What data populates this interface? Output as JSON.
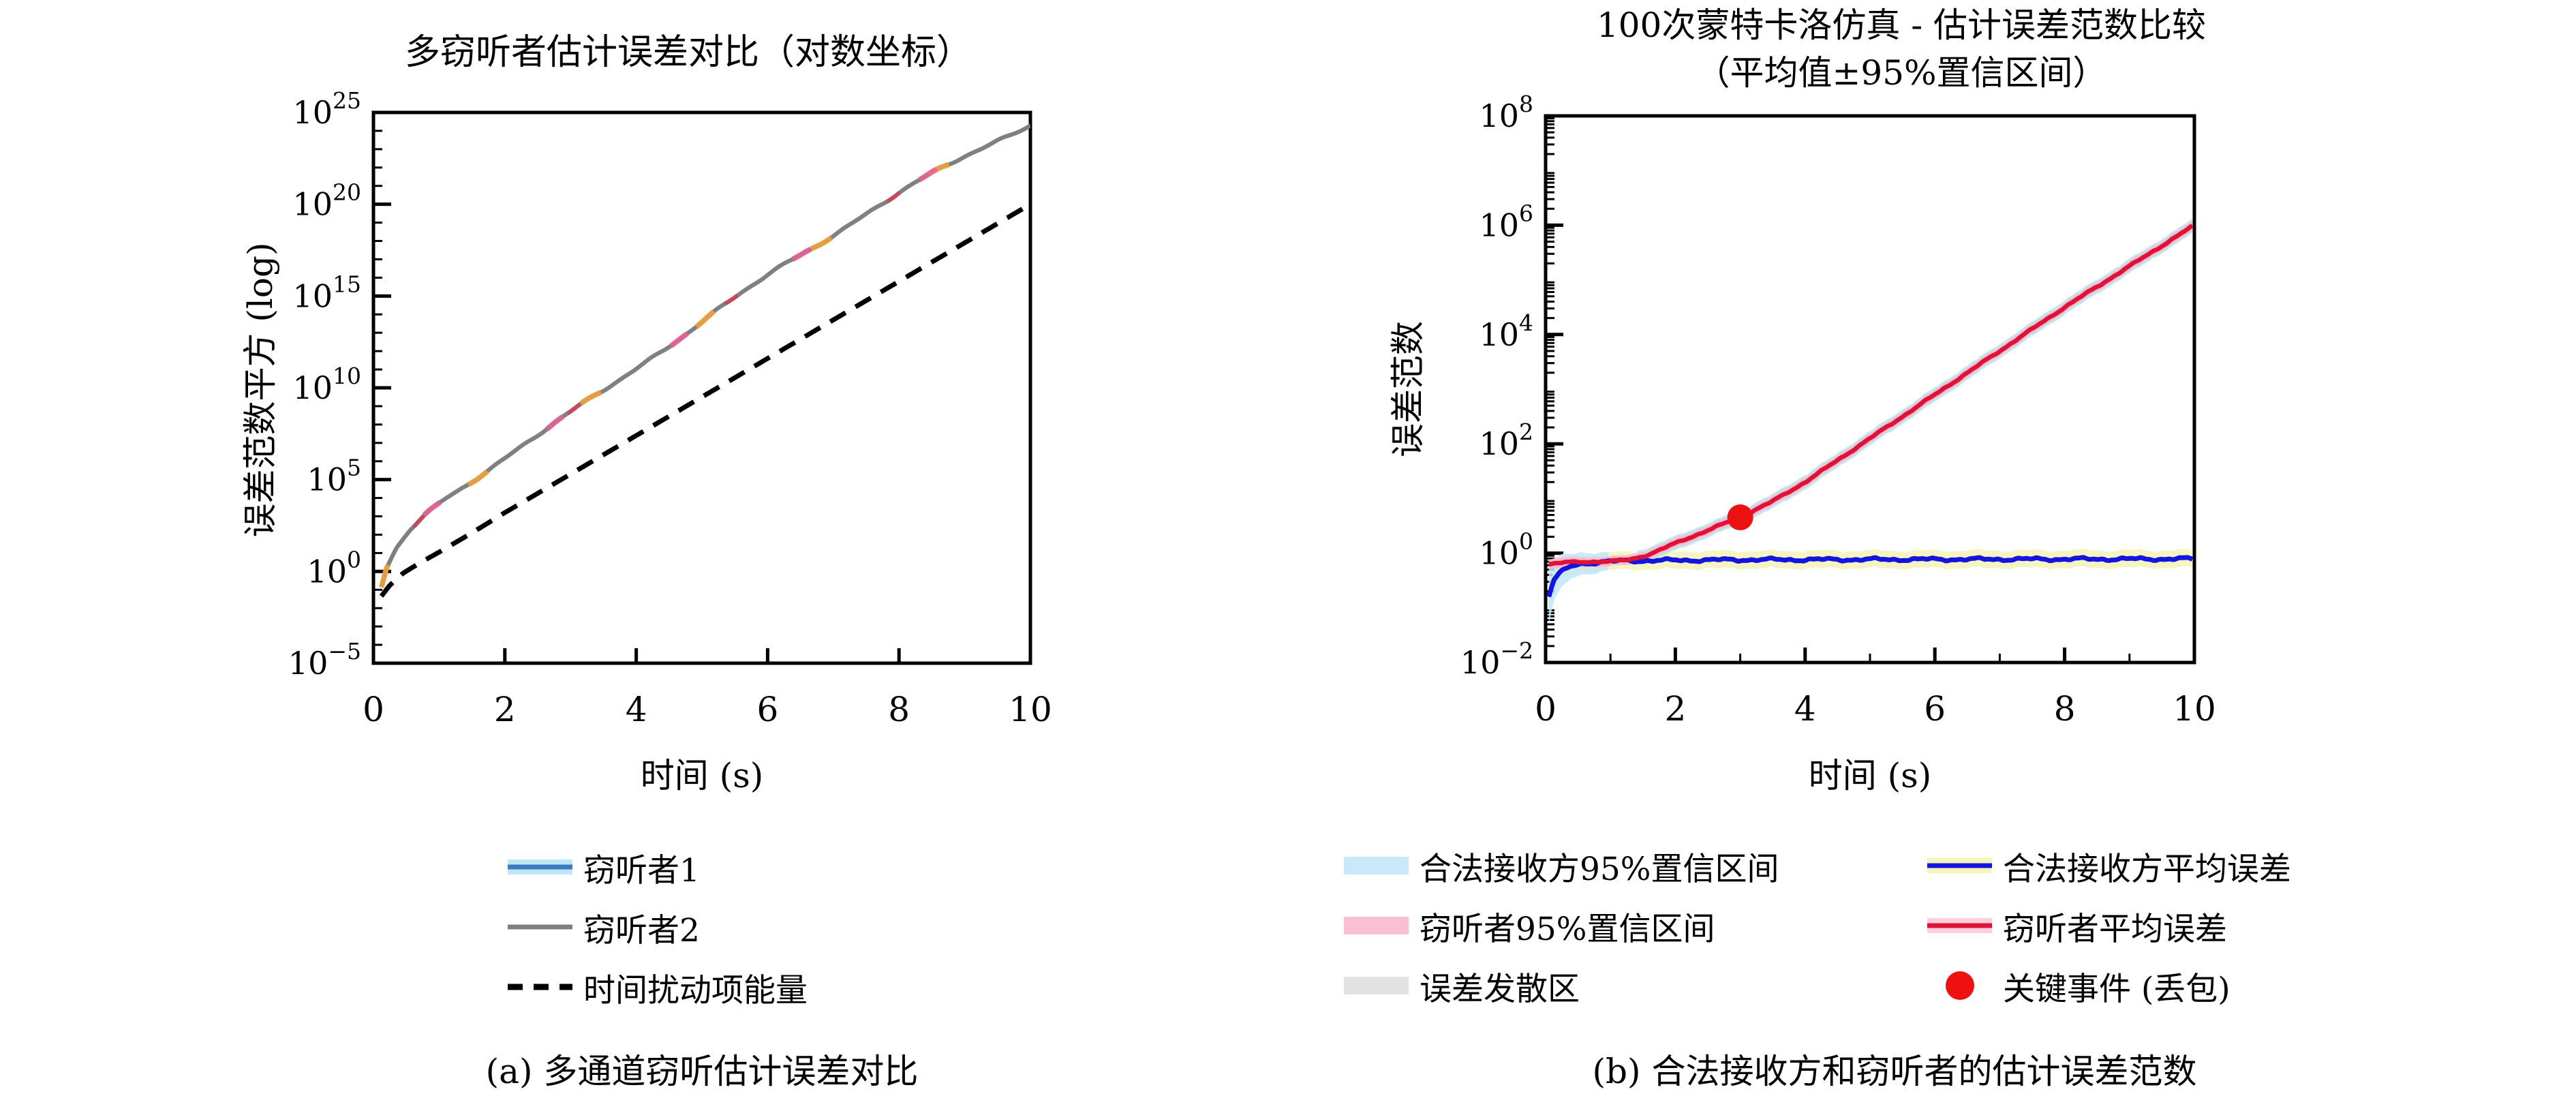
{
  "page": {
    "background": "#ffffff"
  },
  "colors": {
    "axis": "#000000",
    "eavesdropper1_line": "#3a7bbf",
    "eavesdropper1_glow": "#bfe6f7",
    "eavesdropper2_line": "#808080",
    "perturbation_line": "#000000",
    "overlay_orange": "#f1a33c",
    "overlay_pink": "#ec5f9a",
    "overlay_crimson": "#d23c50",
    "bob_line": "#1414dd",
    "bob_line_glow": "#f4f4bc",
    "eve_line": "#dc1438",
    "eve_line_glow": "#ffd0dc",
    "bob_ci_patch": "#c9e9fa",
    "eve_ci_patch": "#f9c0d4",
    "diverge_patch": "#e2e2e2",
    "bob_band_plot": "#f4f4bc",
    "bob_band_start": "#bfe6f7",
    "eve_band_fringe": "#aee4ef",
    "eve_band_plot": "#ffb9cd",
    "key_event_dot": "#ee1111"
  },
  "figure_left": {
    "title": "多窃听者估计误差对比（对数坐标）",
    "ylabel": "误差范数平方 (log)",
    "xlabel": "时间 (s)",
    "caption": "(a) 多通道窃听估计误差对比",
    "legend": [
      {
        "label": "窃听者1"
      },
      {
        "label": "窃听者2"
      },
      {
        "label": "时间扰动项能量"
      }
    ]
  },
  "figure_right": {
    "title_line1": "100次蒙特卡洛仿真 - 估计误差范数比较",
    "title_line2": "（平均值±95%置信区间）",
    "ylabel": "误差范数",
    "xlabel": "时间 (s)",
    "caption": "(b) 合法接收方和窃听者的估计误差范数",
    "legend": [
      {
        "label": "合法接收方95%置信区间"
      },
      {
        "label": "合法接收方平均误差"
      },
      {
        "label": "窃听者95%置信区间"
      },
      {
        "label": "窃听者平均误差"
      },
      {
        "label": "误差发散区"
      },
      {
        "label": "关键事件 (丢包)"
      }
    ]
  },
  "chart_data": [
    {
      "type": "line",
      "panel": "left",
      "title": "多窃听者估计误差对比（对数坐标）",
      "xlabel": "时间 (s)",
      "ylabel": "误差范数平方 (log)",
      "xlim": [
        0,
        10
      ],
      "x_ticks": [
        0,
        2,
        4,
        6,
        8,
        10
      ],
      "y_scale": "log",
      "ylim_exponents": [
        -5,
        25
      ],
      "y_tick_exponents": [
        -5,
        0,
        5,
        10,
        15,
        20,
        25
      ],
      "grid": false,
      "legend_position": "below",
      "series": [
        {
          "name": "窃听者1",
          "style": "solid",
          "points_t_log10": [
            [
              0.12,
              -0.95
            ],
            [
              0.2,
              0.1
            ],
            [
              0.35,
              1.2
            ],
            [
              0.55,
              2.2
            ],
            [
              0.8,
              3.1
            ],
            [
              1.1,
              4.0
            ],
            [
              1.5,
              5.0
            ],
            [
              2.0,
              6.2
            ],
            [
              2.5,
              7.4
            ],
            [
              3,
              8.6
            ],
            [
              4,
              11.1
            ],
            [
              5,
              13.6
            ],
            [
              6,
              16.1
            ],
            [
              7,
              18.4
            ],
            [
              8,
              20.6
            ],
            [
              9,
              22.6
            ],
            [
              10,
              24.4
            ]
          ]
        },
        {
          "name": "窃听者2",
          "style": "solid",
          "points_t_log10": [
            [
              0.12,
              -0.95
            ],
            [
              0.2,
              0.1
            ],
            [
              0.35,
              1.2
            ],
            [
              0.55,
              2.2
            ],
            [
              0.8,
              3.1
            ],
            [
              1.1,
              4.0
            ],
            [
              1.5,
              5.0
            ],
            [
              2.0,
              6.2
            ],
            [
              2.5,
              7.4
            ],
            [
              3,
              8.6
            ],
            [
              4,
              11.1
            ],
            [
              5,
              13.6
            ],
            [
              6,
              16.1
            ],
            [
              7,
              18.4
            ],
            [
              8,
              20.6
            ],
            [
              9,
              22.6
            ],
            [
              10,
              24.4
            ]
          ]
        },
        {
          "name": "时间扰动项能量",
          "style": "dashed",
          "points_t_log10": [
            [
              0.12,
              -1.35
            ],
            [
              0.25,
              -0.75
            ],
            [
              0.45,
              -0.1
            ],
            [
              0.7,
              0.45
            ],
            [
              1.0,
              1.05
            ],
            [
              1.5,
              2.1
            ],
            [
              2,
              3.2
            ],
            [
              3,
              5.3
            ],
            [
              4,
              7.4
            ],
            [
              5,
              9.5
            ],
            [
              6,
              11.6
            ],
            [
              7,
              13.7
            ],
            [
              8,
              15.8
            ],
            [
              9,
              17.9
            ],
            [
              10,
              20.0
            ]
          ]
        }
      ]
    },
    {
      "type": "line",
      "panel": "right",
      "title": "100次蒙特卡洛仿真 - 估计误差范数比较（平均值±95%置信区间）",
      "xlabel": "时间 (s)",
      "ylabel": "误差范数",
      "xlim": [
        0,
        10
      ],
      "x_ticks": [
        0,
        2,
        4,
        6,
        8,
        10
      ],
      "y_scale": "log",
      "ylim_exponents": [
        -2,
        8
      ],
      "y_tick_exponents": [
        -2,
        0,
        2,
        4,
        6,
        8
      ],
      "grid": false,
      "legend_position": "below",
      "series": [
        {
          "name": "合法接收方平均误差",
          "style": "solid",
          "points_t_log10": [
            [
              0.05,
              -0.78
            ],
            [
              0.12,
              -0.5
            ],
            [
              0.2,
              -0.38
            ],
            [
              0.35,
              -0.27
            ],
            [
              0.5,
              -0.2
            ],
            [
              0.8,
              -0.165
            ],
            [
              1.2,
              -0.14
            ],
            [
              2,
              -0.13
            ],
            [
              3,
              -0.12
            ],
            [
              5,
              -0.115
            ],
            [
              7,
              -0.11
            ],
            [
              10,
              -0.105
            ]
          ]
        },
        {
          "name": "窃听者平均误差",
          "style": "solid",
          "points_t_log10": [
            [
              0.05,
              -0.2
            ],
            [
              0.3,
              -0.17
            ],
            [
              0.6,
              -0.16
            ],
            [
              1.0,
              -0.15
            ],
            [
              1.3,
              -0.12
            ],
            [
              1.6,
              -0.02
            ],
            [
              2,
              0.18
            ],
            [
              2.5,
              0.42
            ],
            [
              3,
              0.66
            ],
            [
              3.5,
              0.95
            ],
            [
              4,
              1.3
            ],
            [
              5,
              2.1
            ],
            [
              6,
              2.9
            ],
            [
              7,
              3.7
            ],
            [
              8,
              4.5
            ],
            [
              9,
              5.25
            ],
            [
              10,
              6.0
            ]
          ]
        }
      ],
      "bands": [
        {
          "name": "合法接收方95%置信区间",
          "around": "合法接收方平均误差",
          "half_width_log10": 0.16
        },
        {
          "name": "合法接收方95%置信区间(初始段)",
          "around": "合法接收方平均误差",
          "half_width_points": [
            [
              0.05,
              0.5
            ],
            [
              0.15,
              0.35
            ],
            [
              0.4,
              0.22
            ],
            [
              1.0,
              0.16
            ]
          ]
        },
        {
          "name": "窃听者95%置信区间",
          "around": "窃听者平均误差",
          "half_width_log10": 0.09
        }
      ],
      "key_event": {
        "t": 3,
        "log10_value": 0.66,
        "label": "关键事件 (丢包)"
      }
    }
  ]
}
